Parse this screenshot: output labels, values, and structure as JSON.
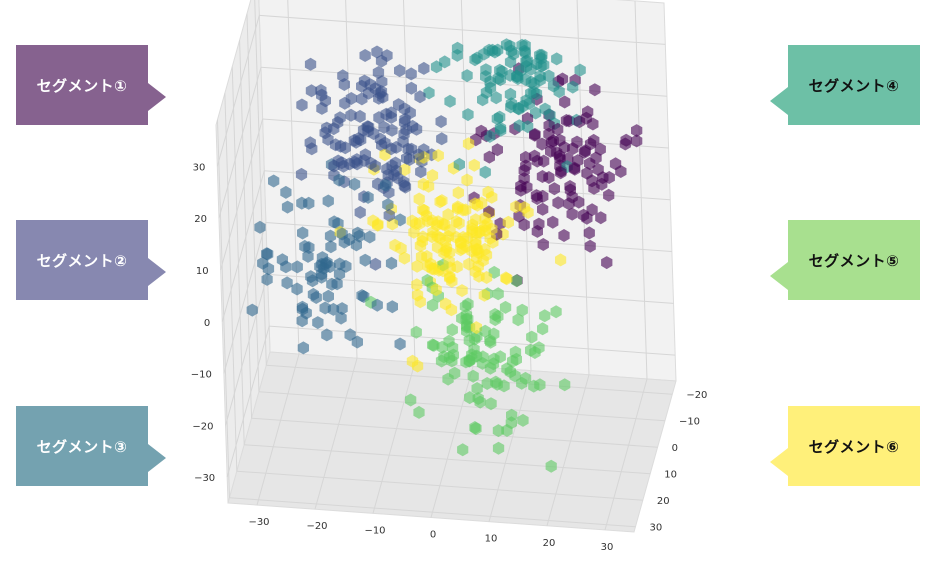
{
  "chart_data": {
    "type": "scatter",
    "dimensions": 3,
    "marker": "hexagon",
    "marker_alpha": 0.6,
    "colormap": "viridis",
    "x_ticks": [
      "−30",
      "−20",
      "−10",
      "0",
      "10",
      "20",
      "30"
    ],
    "y_ticks": [
      "−20",
      "−10",
      "0",
      "10",
      "20",
      "30"
    ],
    "z_ticks": [
      "−30",
      "−20",
      "−10",
      "0",
      "10",
      "20",
      "30"
    ],
    "xlim": [
      -35,
      35
    ],
    "ylim": [
      -25,
      32
    ],
    "zlim": [
      -35,
      38
    ],
    "grid": true,
    "clusters": [
      {
        "label": "セグメント①",
        "color": "#3b528b",
        "center": [
          -12,
          5,
          25
        ],
        "count": 120
      },
      {
        "label": "セグメント②",
        "color": "#31688e",
        "center": [
          -18,
          12,
          2
        ],
        "count": 80
      },
      {
        "label": "セグメント③",
        "color": "#fde725",
        "center": [
          0,
          5,
          5
        ],
        "count": 140
      },
      {
        "label": "セグメント④",
        "color": "#21918c",
        "center": [
          10,
          -10,
          30
        ],
        "count": 110
      },
      {
        "label": "セグメント⑤",
        "color": "#440154",
        "center": [
          18,
          -8,
          12
        ],
        "count": 110
      },
      {
        "label": "セグメント⑥",
        "color": "#5ec962",
        "center": [
          6,
          10,
          -15
        ],
        "count": 100
      }
    ]
  },
  "callouts": {
    "seg1": {
      "label": "セグメント①",
      "bg": "#86628f",
      "fg": "#ffffff"
    },
    "seg2": {
      "label": "セグメント②",
      "bg": "#8788b0",
      "fg": "#ffffff"
    },
    "seg3": {
      "label": "セグメント③",
      "bg": "#74a2b0",
      "fg": "#ffffff"
    },
    "seg4": {
      "label": "セグメント④",
      "bg": "#6dc0a6",
      "fg": "#111111"
    },
    "seg5": {
      "label": "セグメント⑤",
      "bg": "#a8e08f",
      "fg": "#111111"
    },
    "seg6": {
      "label": "セグメント⑥",
      "bg": "#fff07a",
      "fg": "#111111"
    }
  }
}
